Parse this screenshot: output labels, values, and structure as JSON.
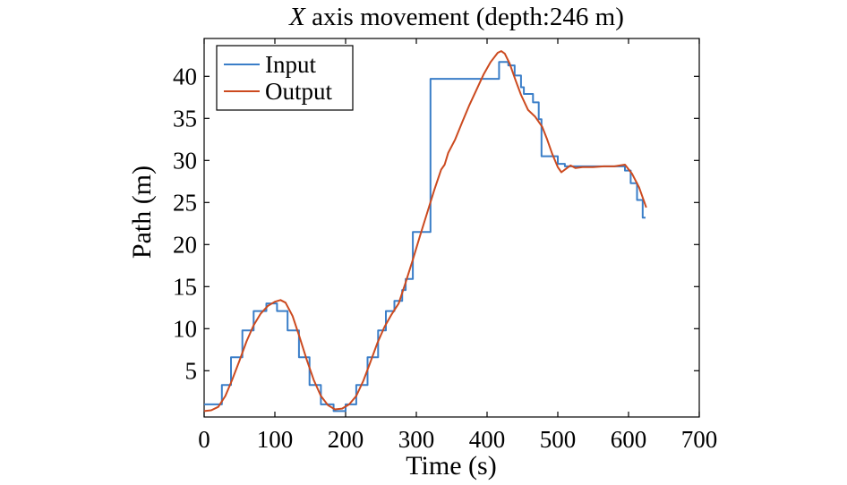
{
  "chart_data": {
    "type": "line",
    "title_prefix": "X",
    "title_rest": " axis movement (depth:246 m)",
    "xlabel": "Time (s)",
    "ylabel": "Path (m)",
    "xlim": [
      0,
      700
    ],
    "ylim": [
      -0.5,
      44.5
    ],
    "xticks": [
      0,
      100,
      200,
      300,
      400,
      500,
      600,
      700
    ],
    "yticks": [
      5,
      10,
      15,
      20,
      25,
      30,
      35,
      40
    ],
    "grid": false,
    "legend_position": "top-left",
    "series": [
      {
        "name": "Input",
        "color": "#3a7ec8",
        "step": true,
        "points": [
          [
            0,
            1.0
          ],
          [
            25,
            3.3
          ],
          [
            38,
            6.6
          ],
          [
            54,
            9.8
          ],
          [
            70,
            12.1
          ],
          [
            88,
            13.0
          ],
          [
            103,
            12.1
          ],
          [
            118,
            9.8
          ],
          [
            134,
            6.6
          ],
          [
            149,
            3.3
          ],
          [
            165,
            1.0
          ],
          [
            183,
            0.2
          ],
          [
            200,
            1.0
          ],
          [
            215,
            3.3
          ],
          [
            231,
            6.6
          ],
          [
            246,
            9.8
          ],
          [
            257,
            12.1
          ],
          [
            269,
            13.3
          ],
          [
            280,
            14.6
          ],
          [
            285,
            15.9
          ],
          [
            295,
            21.5
          ],
          [
            320,
            39.7
          ],
          [
            417,
            41.7
          ],
          [
            430,
            41.3
          ],
          [
            439,
            40.1
          ],
          [
            448,
            38.7
          ],
          [
            452,
            37.9
          ],
          [
            465,
            36.9
          ],
          [
            473,
            34.9
          ],
          [
            477,
            30.5
          ],
          [
            500,
            29.6
          ],
          [
            510,
            29.3
          ],
          [
            595,
            28.8
          ],
          [
            603,
            27.3
          ],
          [
            612,
            25.3
          ],
          [
            620,
            23.2
          ],
          [
            624,
            23.2
          ]
        ]
      },
      {
        "name": "Output",
        "color": "#cc4a1f",
        "step": false,
        "points": [
          [
            0,
            0.2
          ],
          [
            10,
            0.3
          ],
          [
            20,
            0.7
          ],
          [
            30,
            2.0
          ],
          [
            40,
            4.0
          ],
          [
            50,
            6.2
          ],
          [
            60,
            8.5
          ],
          [
            70,
            10.4
          ],
          [
            80,
            11.8
          ],
          [
            90,
            12.7
          ],
          [
            100,
            13.2
          ],
          [
            108,
            13.4
          ],
          [
            115,
            13.1
          ],
          [
            125,
            11.5
          ],
          [
            135,
            9.0
          ],
          [
            145,
            6.3
          ],
          [
            155,
            3.9
          ],
          [
            165,
            2.0
          ],
          [
            175,
            0.9
          ],
          [
            185,
            0.4
          ],
          [
            195,
            0.5
          ],
          [
            205,
            1.0
          ],
          [
            215,
            2.0
          ],
          [
            225,
            3.8
          ],
          [
            235,
            6.0
          ],
          [
            245,
            8.3
          ],
          [
            255,
            10.2
          ],
          [
            265,
            11.7
          ],
          [
            275,
            13.0
          ],
          [
            285,
            15.5
          ],
          [
            295,
            18.2
          ],
          [
            305,
            21.0
          ],
          [
            315,
            23.7
          ],
          [
            325,
            26.4
          ],
          [
            335,
            28.9
          ],
          [
            340,
            29.5
          ],
          [
            345,
            30.9
          ],
          [
            355,
            32.5
          ],
          [
            365,
            34.6
          ],
          [
            375,
            36.6
          ],
          [
            385,
            38.4
          ],
          [
            395,
            40.2
          ],
          [
            405,
            41.7
          ],
          [
            415,
            42.8
          ],
          [
            420,
            43.0
          ],
          [
            425,
            42.7
          ],
          [
            432,
            41.5
          ],
          [
            440,
            39.6
          ],
          [
            448,
            37.8
          ],
          [
            458,
            36.0
          ],
          [
            468,
            35.2
          ],
          [
            478,
            34.0
          ],
          [
            485,
            32.5
          ],
          [
            492,
            30.8
          ],
          [
            500,
            29.2
          ],
          [
            505,
            28.6
          ],
          [
            510,
            28.9
          ],
          [
            518,
            29.4
          ],
          [
            525,
            29.1
          ],
          [
            535,
            29.2
          ],
          [
            550,
            29.2
          ],
          [
            565,
            29.3
          ],
          [
            580,
            29.3
          ],
          [
            595,
            29.5
          ],
          [
            605,
            28.4
          ],
          [
            615,
            26.8
          ],
          [
            625,
            24.4
          ]
        ]
      }
    ]
  }
}
